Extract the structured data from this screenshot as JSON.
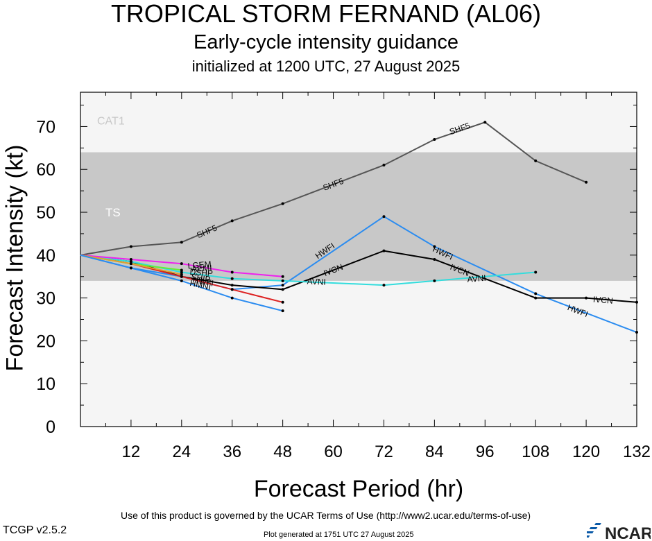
{
  "header": {
    "title": "TROPICAL STORM FERNAND (AL06)",
    "subtitle": "Early-cycle intensity guidance",
    "initialized": "initialized at 1200 UTC, 27 August 2025"
  },
  "footer": {
    "terms": "Use of this product is governed by the UCAR Terms of Use (http://www2.ucar.edu/terms-of-use)",
    "version": "TCGP v2.5.2",
    "generated": "Plot generated at 1751 UTC   27 August 2025",
    "logo_text": "NCAR"
  },
  "colors": {
    "band_ts": "#c8c8c8",
    "band_light": "#f5f5f5",
    "shf5": "#555555",
    "hwfi": "#2b8cf0",
    "ivcn": "#000000",
    "avni": "#33dddd",
    "magenta": "#ee22ee",
    "red": "#dd2222",
    "green": "#66ee33",
    "orange": "#e3a030"
  },
  "chart_data": {
    "type": "line",
    "xlabel": "Forecast Period (hr)",
    "ylabel": "Forecast Intensity (kt)",
    "xlim": [
      0,
      132
    ],
    "ylim": [
      0,
      78
    ],
    "xticks": [
      12,
      24,
      36,
      48,
      60,
      72,
      84,
      96,
      108,
      120,
      132
    ],
    "yticks": [
      0,
      10,
      20,
      30,
      40,
      50,
      60,
      70
    ],
    "grid": false,
    "bands": [
      {
        "label": "TS",
        "from": 34,
        "to": 64
      },
      {
        "label": "CAT1",
        "from": 64,
        "to": 83
      }
    ],
    "series": [
      {
        "name": "SHF5",
        "color_key": "shf5",
        "x": [
          0,
          12,
          24,
          36,
          48,
          72,
          84,
          96,
          108,
          120
        ],
        "y": [
          40,
          42,
          43,
          48,
          52,
          61,
          67,
          71,
          62,
          57
        ],
        "labels": [
          {
            "x": 30,
            "y": 45.5
          },
          {
            "x": 60,
            "y": 56.5
          },
          {
            "x": 90,
            "y": 69.5
          }
        ]
      },
      {
        "name": "HWFI",
        "color_key": "hwfi",
        "x": [
          0,
          12,
          24,
          36,
          48,
          72,
          84,
          108,
          132
        ],
        "y": [
          40,
          37,
          35,
          32,
          33,
          49,
          42,
          31,
          22
        ],
        "labels": [
          {
            "x": 58,
            "y": 41
          },
          {
            "x": 86,
            "y": 40.5
          },
          {
            "x": 118,
            "y": 27
          }
        ]
      },
      {
        "name": "IVCN",
        "color_key": "ivcn",
        "x": [
          0,
          12,
          24,
          36,
          48,
          72,
          84,
          108,
          120,
          132
        ],
        "y": [
          40,
          38.5,
          35,
          33,
          32,
          41,
          39,
          30,
          30,
          29
        ],
        "labels": [
          {
            "x": 60,
            "y": 36.5
          },
          {
            "x": 90,
            "y": 36.5
          },
          {
            "x": 124,
            "y": 29.5
          }
        ]
      },
      {
        "name": "AVNI",
        "color_key": "avni",
        "x": [
          0,
          12,
          24,
          36,
          48,
          72,
          84,
          108
        ],
        "y": [
          40,
          38.5,
          36,
          34.5,
          34,
          33,
          34,
          36
        ],
        "labels": [
          {
            "x": 56,
            "y": 33.8
          },
          {
            "x": 94,
            "y": 34.5
          }
        ]
      },
      {
        "name": "",
        "color_key": "magenta",
        "x": [
          0,
          12,
          24,
          36,
          48
        ],
        "y": [
          40,
          39,
          38,
          36,
          35
        ],
        "labels": []
      },
      {
        "name": "",
        "color_key": "red",
        "x": [
          0,
          12,
          24,
          36,
          48
        ],
        "y": [
          40,
          38,
          35,
          32,
          29
        ],
        "labels": []
      },
      {
        "name": "",
        "color_key": "green",
        "x": [
          0,
          12,
          24
        ],
        "y": [
          40,
          38,
          36.5
        ],
        "labels": []
      },
      {
        "name": "",
        "color_key": "orange",
        "x": [
          0,
          12,
          24
        ],
        "y": [
          40,
          38,
          35.5
        ],
        "labels": []
      },
      {
        "name": "",
        "color_key": "hwfi",
        "x": [
          0,
          12,
          24,
          36,
          48
        ],
        "y": [
          40,
          37,
          34,
          30,
          27
        ],
        "labels": []
      }
    ],
    "cluster_labels": [
      "LGEM",
      "DSHP",
      "SHIP",
      "HMNI",
      "AEMI",
      "HWFI"
    ]
  }
}
